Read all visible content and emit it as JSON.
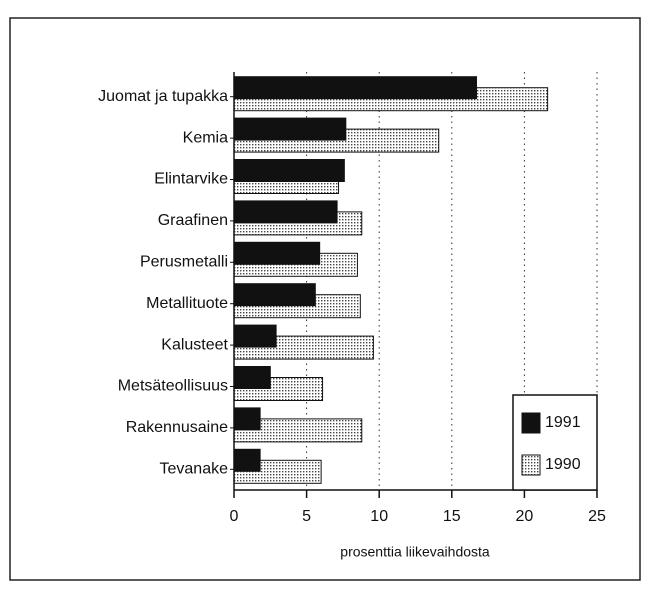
{
  "chart_data": {
    "type": "barh",
    "categories": [
      "Juomat ja tupakka",
      "Kemia",
      "Elintarvike",
      "Graafinen",
      "Perusmetalli",
      "Metallituote",
      "Kalusteet",
      "Metsäteollisuus",
      "Rakennusaine",
      "Tevanake"
    ],
    "series": [
      {
        "name": "1991",
        "color": "#111111",
        "values": [
          16.7,
          7.7,
          7.6,
          7.1,
          5.9,
          5.6,
          2.9,
          2.5,
          1.8,
          1.8
        ]
      },
      {
        "name": "1990",
        "color": "#d4d4d4",
        "values": [
          21.6,
          14.1,
          7.2,
          8.8,
          8.5,
          8.7,
          9.6,
          6.1,
          8.8,
          6.0
        ]
      }
    ],
    "xlabel": "prosenttia liikevaihdosta",
    "xlim": [
      0,
      25
    ],
    "xticks": [
      0,
      5,
      10,
      15,
      20,
      25
    ],
    "grid": true,
    "legend": "lower right"
  }
}
